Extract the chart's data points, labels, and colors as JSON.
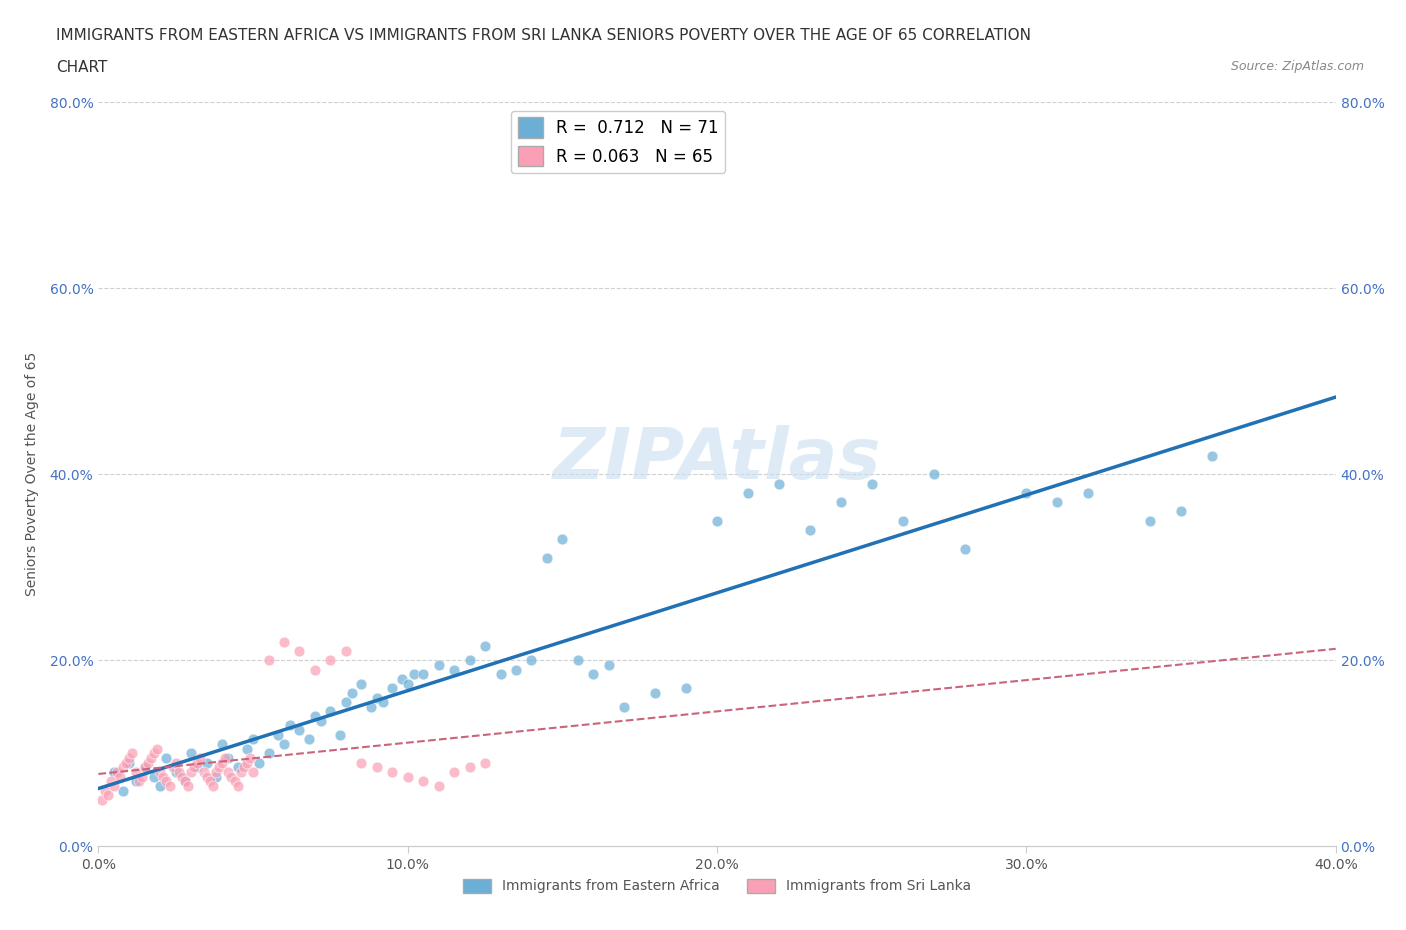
{
  "title_line1": "IMMIGRANTS FROM EASTERN AFRICA VS IMMIGRANTS FROM SRI LANKA SENIORS POVERTY OVER THE AGE OF 65 CORRELATION",
  "title_line2": "CHART",
  "source": "Source: ZipAtlas.com",
  "ylabel": "Seniors Poverty Over the Age of 65",
  "xlim": [
    0.0,
    0.4
  ],
  "ylim": [
    0.0,
    0.8
  ],
  "xticks": [
    0.0,
    0.1,
    0.2,
    0.3,
    0.4
  ],
  "yticks": [
    0.0,
    0.2,
    0.4,
    0.6,
    0.8
  ],
  "xtick_labels": [
    "0.0%",
    "10.0%",
    "20.0%",
    "30.0%",
    "40.0%"
  ],
  "ytick_labels": [
    "0.0%",
    "20.0%",
    "40.0%",
    "60.0%",
    "80.0%"
  ],
  "blue_color": "#6baed6",
  "pink_color": "#fa9fb5",
  "blue_line_color": "#2171b5",
  "pink_line_color": "#c9647a",
  "R_blue": 0.712,
  "N_blue": 71,
  "R_pink": 0.063,
  "N_pink": 65,
  "watermark": "ZIPAtlas",
  "watermark_color": "#c8dff0",
  "grid_color": "#d0d0d0",
  "background_color": "#ffffff",
  "blue_scatter_x": [
    0.005,
    0.008,
    0.01,
    0.012,
    0.015,
    0.018,
    0.02,
    0.022,
    0.025,
    0.028,
    0.03,
    0.032,
    0.035,
    0.038,
    0.04,
    0.042,
    0.045,
    0.048,
    0.05,
    0.052,
    0.055,
    0.058,
    0.06,
    0.062,
    0.065,
    0.068,
    0.07,
    0.072,
    0.075,
    0.078,
    0.08,
    0.082,
    0.085,
    0.088,
    0.09,
    0.092,
    0.095,
    0.098,
    0.1,
    0.102,
    0.105,
    0.11,
    0.115,
    0.12,
    0.125,
    0.13,
    0.135,
    0.14,
    0.145,
    0.15,
    0.155,
    0.16,
    0.165,
    0.17,
    0.18,
    0.19,
    0.2,
    0.21,
    0.22,
    0.23,
    0.24,
    0.25,
    0.26,
    0.27,
    0.28,
    0.3,
    0.31,
    0.32,
    0.34,
    0.35,
    0.36
  ],
  "blue_scatter_y": [
    0.08,
    0.06,
    0.09,
    0.07,
    0.085,
    0.075,
    0.065,
    0.095,
    0.08,
    0.07,
    0.1,
    0.085,
    0.09,
    0.075,
    0.11,
    0.095,
    0.085,
    0.105,
    0.115,
    0.09,
    0.1,
    0.12,
    0.11,
    0.13,
    0.125,
    0.115,
    0.14,
    0.135,
    0.145,
    0.12,
    0.155,
    0.165,
    0.175,
    0.15,
    0.16,
    0.155,
    0.17,
    0.18,
    0.175,
    0.185,
    0.185,
    0.195,
    0.19,
    0.2,
    0.215,
    0.185,
    0.19,
    0.2,
    0.31,
    0.33,
    0.2,
    0.185,
    0.195,
    0.15,
    0.165,
    0.17,
    0.35,
    0.38,
    0.39,
    0.34,
    0.37,
    0.39,
    0.35,
    0.4,
    0.32,
    0.38,
    0.37,
    0.38,
    0.35,
    0.36,
    0.42
  ],
  "pink_scatter_x": [
    0.001,
    0.002,
    0.003,
    0.004,
    0.005,
    0.006,
    0.007,
    0.008,
    0.009,
    0.01,
    0.011,
    0.012,
    0.013,
    0.014,
    0.015,
    0.016,
    0.017,
    0.018,
    0.019,
    0.02,
    0.021,
    0.022,
    0.023,
    0.024,
    0.025,
    0.026,
    0.027,
    0.028,
    0.029,
    0.03,
    0.031,
    0.032,
    0.033,
    0.034,
    0.035,
    0.036,
    0.037,
    0.038,
    0.039,
    0.04,
    0.041,
    0.042,
    0.043,
    0.044,
    0.045,
    0.046,
    0.047,
    0.048,
    0.049,
    0.05,
    0.055,
    0.06,
    0.065,
    0.07,
    0.075,
    0.08,
    0.085,
    0.09,
    0.095,
    0.1,
    0.105,
    0.11,
    0.115,
    0.12,
    0.125
  ],
  "pink_scatter_y": [
    0.05,
    0.06,
    0.055,
    0.07,
    0.065,
    0.08,
    0.075,
    0.085,
    0.09,
    0.095,
    0.1,
    0.08,
    0.07,
    0.075,
    0.085,
    0.09,
    0.095,
    0.1,
    0.105,
    0.08,
    0.075,
    0.07,
    0.065,
    0.085,
    0.09,
    0.08,
    0.075,
    0.07,
    0.065,
    0.08,
    0.085,
    0.09,
    0.095,
    0.08,
    0.075,
    0.07,
    0.065,
    0.08,
    0.085,
    0.09,
    0.095,
    0.08,
    0.075,
    0.07,
    0.065,
    0.08,
    0.085,
    0.09,
    0.095,
    0.08,
    0.2,
    0.22,
    0.21,
    0.19,
    0.2,
    0.21,
    0.09,
    0.085,
    0.08,
    0.075,
    0.07,
    0.065,
    0.08,
    0.085,
    0.09
  ]
}
